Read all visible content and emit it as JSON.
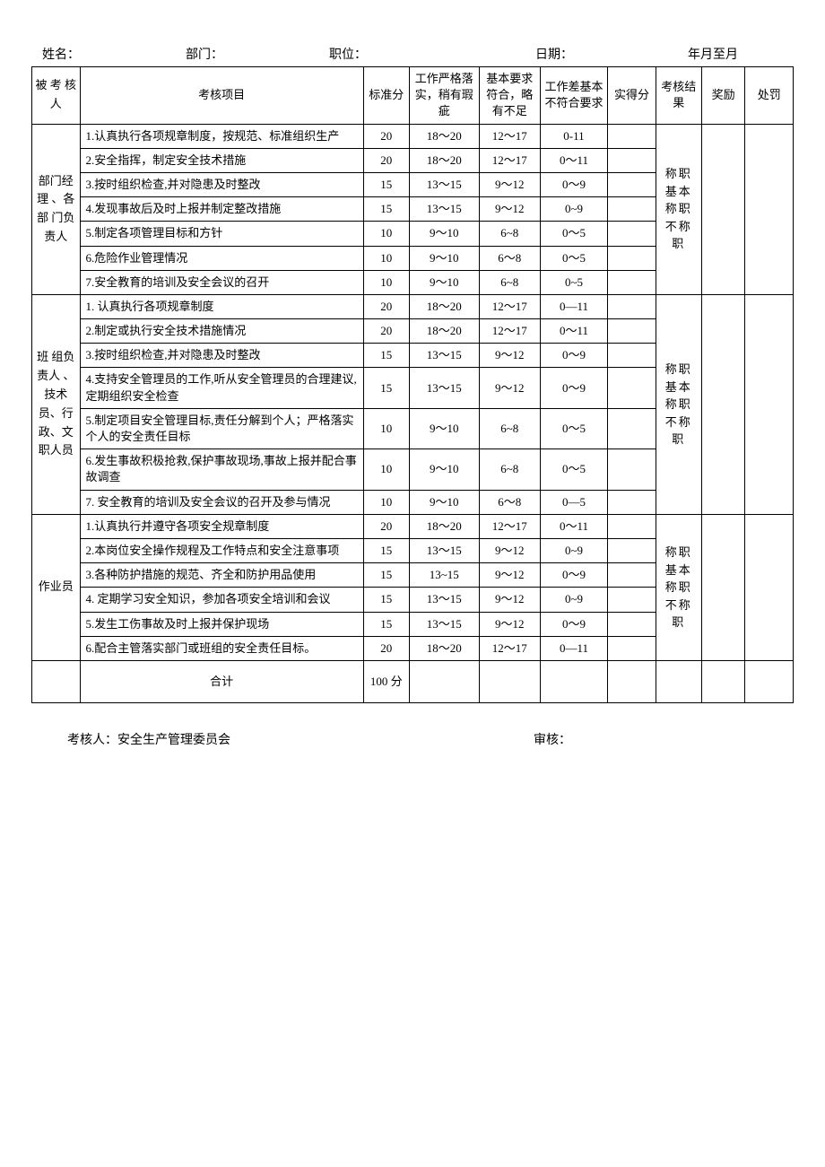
{
  "header": {
    "name_label": "姓名：",
    "dept_label": "部门：",
    "position_label": "职位：",
    "date_label": "日期：",
    "daterange_label": "年月至月"
  },
  "columns": {
    "subject": "被 考 核人",
    "item": "考核项目",
    "std": "标准分",
    "col_a": "工作严格落实，稍有瑕疵",
    "col_b": "基本要求符合，略有不足",
    "col_c": "工作差基本不符合要求",
    "score": "实得分",
    "result": "考核结果",
    "reward": "奖励",
    "punish": "处罚"
  },
  "group1": {
    "label": "部门经理 、各部 门负 责人",
    "result_text": "称职基本称职不称职",
    "rows": [
      {
        "item": "1.认真执行各项规章制度，按规范、标准组织生产",
        "std": "20",
        "a": "18～20",
        "b": "12～17",
        "c": "0-11"
      },
      {
        "item": "2.安全指挥，制定安全技术措施",
        "std": "20",
        "a": "18～20",
        "b": "12～17",
        "c": "0～11"
      },
      {
        "item": "3.按时组织检查,并对隐患及时整改",
        "std": "15",
        "a": "13～15",
        "b": "9～12",
        "c": "0～9"
      },
      {
        "item": "4.发现事故后及时上报并制定整改措施",
        "std": "15",
        "a": "13～15",
        "b": "9～12",
        "c": "0~9"
      },
      {
        "item": "5.制定各项管理目标和方针",
        "std": "10",
        "a": "9～10",
        "b": "6~8",
        "c": "0～5"
      },
      {
        "item": "6.危险作业管理情况",
        "std": "10",
        "a": "9～10",
        "b": "6～8",
        "c": "0～5"
      },
      {
        "item": "7.安全教育的培训及安全会议的召开",
        "std": "10",
        "a": "9～10",
        "b": "6~8",
        "c": "0~5"
      }
    ]
  },
  "group2": {
    "label": "班 组负 责人 、技术员、行政、文职人员",
    "result_text": "称职基本称职不称职",
    "rows": [
      {
        "item": "1. 认真执行各项规章制度",
        "std": "20",
        "a": "18～20",
        "b": "12～17",
        "c": "0—11"
      },
      {
        "item": "2.制定或执行安全技术措施情况",
        "std": "20",
        "a": "18～20",
        "b": "12～17",
        "c": "0～11"
      },
      {
        "item": "3.按时组织检查,并对隐患及时整改",
        "std": "15",
        "a": "13～15",
        "b": "9～12",
        "c": "0～9"
      },
      {
        "item": "4.支持安全管理员的工作,听从安全管理员的合理建议,定期组织安全检查",
        "std": "15",
        "a": "13～15",
        "b": "9～12",
        "c": "0～9"
      },
      {
        "item": "5.制定项目安全管理目标,责任分解到个人；严格落实个人的安全责任目标",
        "std": "10",
        "a": "9～10",
        "b": "6~8",
        "c": "0～5"
      },
      {
        "item": "6.发生事故积极抢救,保护事故现场,事故上报并配合事故调查",
        "std": "10",
        "a": "9～10",
        "b": "6~8",
        "c": "0～5"
      },
      {
        "item": "7. 安全教育的培训及安全会议的召开及参与情况",
        "std": "10",
        "a": "9～10",
        "b": "6～8",
        "c": "0—5"
      }
    ]
  },
  "group3": {
    "label": "作业员",
    "result_text": "称职基本称职不称职",
    "rows": [
      {
        "item": "1.认真执行并遵守各项安全规章制度",
        "std": "20",
        "a": "18～20",
        "b": "12～17",
        "c": "0～11"
      },
      {
        "item": "2.本岗位安全操作规程及工作特点和安全注意事项",
        "std": "15",
        "a": "13～15",
        "b": "9～12",
        "c": "0~9"
      },
      {
        "item": "3.各种防护措施的规范、齐全和防护用品使用",
        "std": "15",
        "a": "13~15",
        "b": "9～12",
        "c": "0～9"
      },
      {
        "item": "4. 定期学习安全知识，参加各项安全培训和会议",
        "std": "15",
        "a": "13～15",
        "b": "9～12",
        "c": "0~9"
      },
      {
        "item": "5.发生工伤事故及时上报并保护现场",
        "std": "15",
        "a": "13～15",
        "b": "9～12",
        "c": "0～9"
      },
      {
        "item": "6.配合主管落实部门或班组的安全责任目标。",
        "std": "20",
        "a": "18～20",
        "b": "12～17",
        "c": "0—11"
      }
    ]
  },
  "total": {
    "label": "合计",
    "value": "100 分"
  },
  "footer": {
    "examiner": "考核人：安全生产管理委员会",
    "auditor": "审核："
  }
}
